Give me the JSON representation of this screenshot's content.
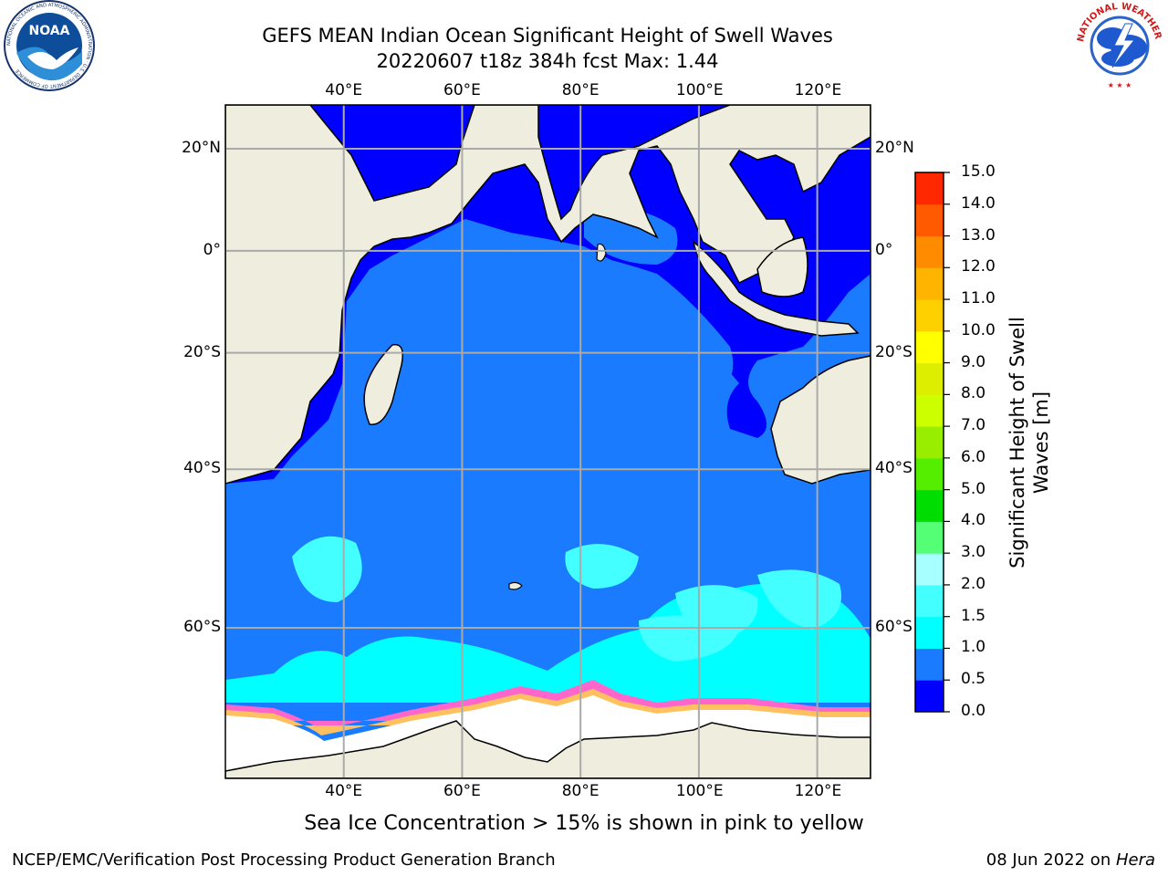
{
  "title": {
    "line1": "GEFS MEAN Indian Ocean Significant Height of Swell Waves",
    "line2": "20220607 t18z 384h fcst   Max: 1.44"
  },
  "logos": {
    "left": {
      "name": "noaa-logo",
      "text": "NOAA",
      "ring_text": "NATIONAL OCEANIC AND ATMOSPHERIC ADMINISTRATION · U.S. DEPARTMENT OF COMMERCE"
    },
    "right": {
      "name": "nws-logo",
      "ring_text": "NATIONAL WEATHER SERVICE"
    }
  },
  "map": {
    "lon_ticks": [
      "40°E",
      "60°E",
      "80°E",
      "100°E",
      "120°E"
    ],
    "lat_ticks": [
      "20°N",
      "0°",
      "20°S",
      "40°S",
      "60°S"
    ],
    "lon_values": [
      40,
      60,
      80,
      100,
      120
    ],
    "lat_values": [
      20,
      0,
      -20,
      -40,
      -60
    ],
    "extent": {
      "lon": [
        20,
        129
      ],
      "lat": [
        -72,
        28
      ]
    },
    "grid": true,
    "colors": {
      "land": "#efedde",
      "ice": "#ffffff",
      "coast": "#000000"
    }
  },
  "colorbar": {
    "title": "Significant Height of Swell Waves [m]",
    "levels": [
      "0.0",
      "0.5",
      "1.0",
      "1.5",
      "2.0",
      "3.0",
      "4.0",
      "5.0",
      "6.0",
      "7.0",
      "8.0",
      "9.0",
      "10.0",
      "11.0",
      "12.0",
      "13.0",
      "14.0",
      "15.0"
    ],
    "colors": [
      "#0000ff",
      "#1b7bff",
      "#00ffff",
      "#44ffff",
      "#a8ffff",
      "#55ff75",
      "#00dd00",
      "#55ee00",
      "#99ee00",
      "#ccff00",
      "#ddee00",
      "#ffff00",
      "#ffd000",
      "#ffb400",
      "#ff8c00",
      "#ff5a00",
      "#ff2800"
    ]
  },
  "note": "Sea Ice Concentration > 15% is shown in pink to yellow",
  "footer": {
    "left": "NCEP/EMC/Verification Post Processing Product Generation Branch",
    "right_date": "08 Jun 2022 on ",
    "right_host": "Hera"
  }
}
